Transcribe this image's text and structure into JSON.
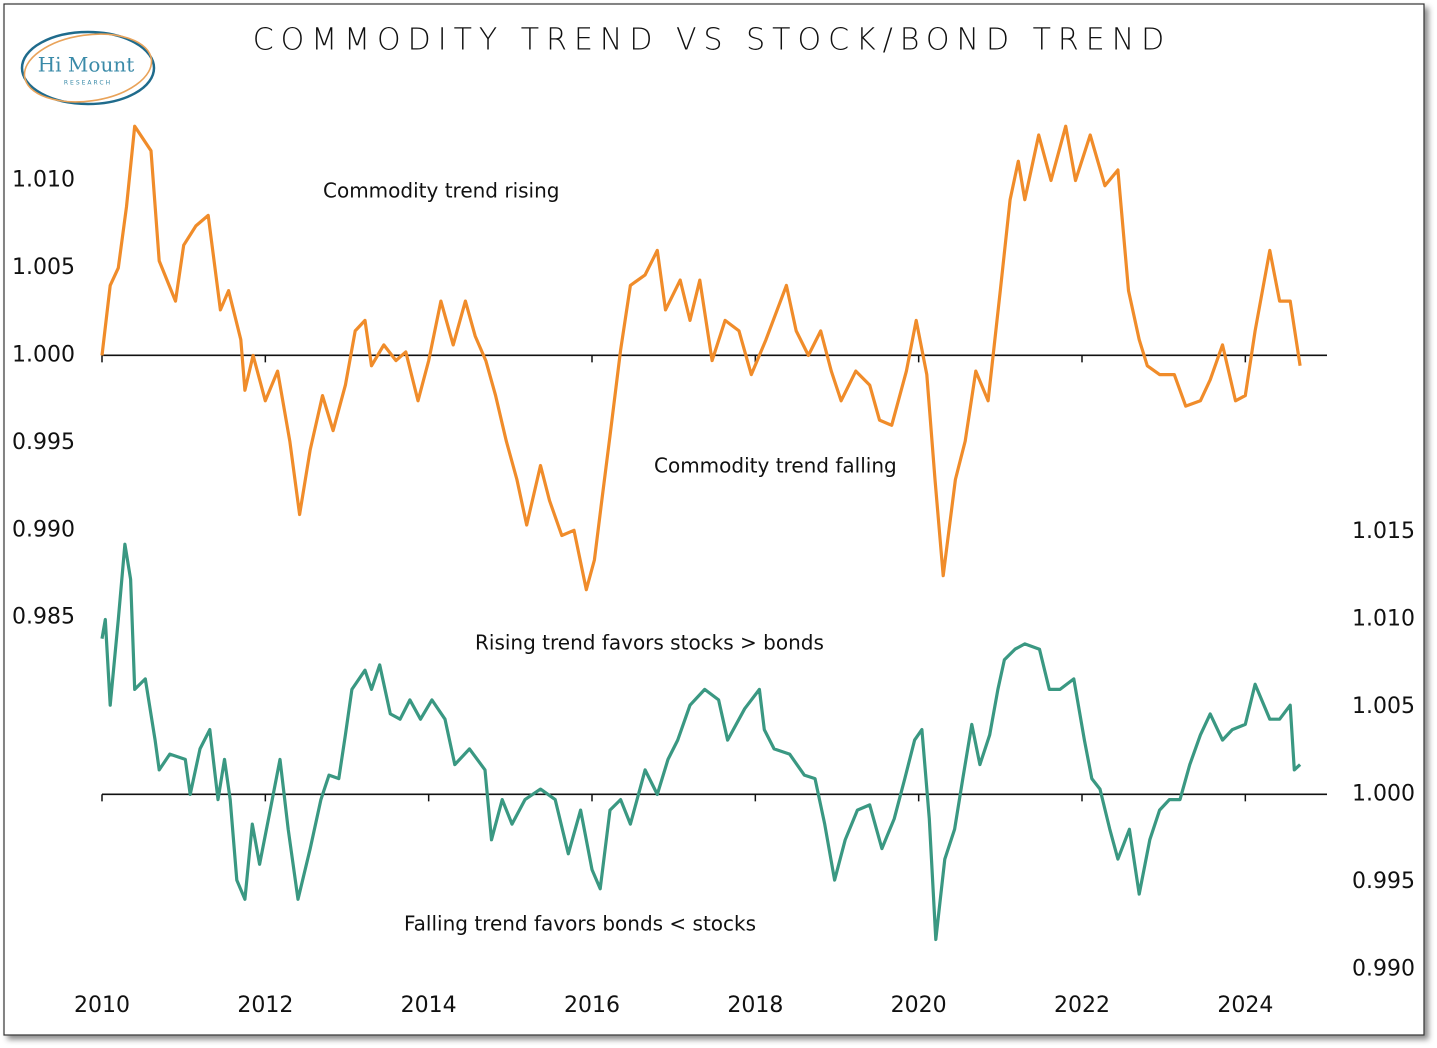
{
  "chart_data": {
    "type": "line",
    "title": "COMMODITY TREND VS STOCK/BOND TREND",
    "logo": {
      "name": "Hi Mount",
      "subtitle": "RESEARCH"
    },
    "annotations": [
      "Commodity trend rising",
      "Commodity trend falling",
      "Rising trend favors stocks > bonds",
      "Falling trend favors bonds < stocks"
    ],
    "xlim": [
      2010,
      2025
    ],
    "xticks": [
      2010,
      2012,
      2014,
      2016,
      2018,
      2020,
      2022,
      2024
    ],
    "ylim": [
      0.964,
      1.0146
    ],
    "yticks": [
      0.985,
      {
        "value": 0.99,
        "label": "0.990"
      },
      0.995,
      {
        "value": 1,
        "label": "1.000"
      },
      1.005,
      {
        "value": 1.01,
        "label": "1.010"
      }
    ],
    "y2lim": [
      0.9891,
      1.0397
    ],
    "y2ticks": [
      {
        "value": 0.99,
        "label": "0.990"
      },
      0.995,
      {
        "value": 1,
        "label": "1.000"
      },
      1.005,
      {
        "value": 1.01,
        "label": "1.010"
      },
      1.015
    ],
    "hlines": [
      {
        "axis": "y",
        "value": 1
      },
      {
        "axis": "y2",
        "value": 1
      }
    ],
    "grid": false,
    "series": [
      {
        "color": "#f08c2a",
        "axis": "y",
        "x": [
          2010.0,
          2010.1,
          2010.2,
          2010.3,
          2010.4,
          2010.6,
          2010.7,
          2010.9,
          2011.0,
          2011.15,
          2011.3,
          2011.45,
          2011.55,
          2011.7,
          2011.75,
          2011.85,
          2012.0,
          2012.15,
          2012.3,
          2012.42,
          2012.55,
          2012.7,
          2012.83,
          2012.98,
          2013.1,
          2013.22,
          2013.3,
          2013.45,
          2013.6,
          2013.72,
          2013.87,
          2014.0,
          2014.15,
          2014.3,
          2014.45,
          2014.57,
          2014.7,
          2014.82,
          2014.95,
          2015.08,
          2015.2,
          2015.37,
          2015.48,
          2015.63,
          2015.78,
          2015.93,
          2016.03,
          2016.12,
          2016.22,
          2016.35,
          2016.47,
          2016.65,
          2016.8,
          2016.9,
          2017.08,
          2017.2,
          2017.32,
          2017.47,
          2017.63,
          2017.8,
          2017.95,
          2018.13,
          2018.38,
          2018.5,
          2018.65,
          2018.8,
          2018.93,
          2019.05,
          2019.23,
          2019.4,
          2019.52,
          2019.67,
          2019.85,
          2019.97,
          2020.1,
          2020.2,
          2020.3,
          2020.45,
          2020.57,
          2020.7,
          2020.85,
          2021.0,
          2021.12,
          2021.22,
          2021.3,
          2021.47,
          2021.62,
          2021.8,
          2021.92,
          2022.1,
          2022.28,
          2022.44,
          2022.57,
          2022.7,
          2022.8,
          2022.95,
          2023.13,
          2023.27,
          2023.45,
          2023.57,
          2023.72,
          2023.88,
          2024.0,
          2024.12,
          2024.3,
          2024.42,
          2024.55,
          2024.67
        ],
        "values": [
          1.0,
          1.004,
          1.005,
          1.0085,
          1.0131,
          1.0117,
          1.0054,
          1.0031,
          1.0063,
          1.0074,
          1.008,
          1.0026,
          1.0037,
          1.0009,
          0.998,
          1.0,
          0.9974,
          0.9991,
          0.9951,
          0.9909,
          0.9946,
          0.9977,
          0.9957,
          0.9983,
          1.0014,
          1.002,
          0.9994,
          1.0006,
          0.9997,
          1.0002,
          0.9974,
          0.9997,
          1.0031,
          1.0006,
          1.0031,
          1.0011,
          0.9997,
          0.9977,
          0.9951,
          0.9929,
          0.9903,
          0.9937,
          0.9917,
          0.9897,
          0.99,
          0.9866,
          0.9883,
          0.9917,
          0.9954,
          1.0003,
          1.004,
          1.0046,
          1.006,
          1.0026,
          1.0043,
          1.002,
          1.0043,
          0.9997,
          1.002,
          1.0014,
          0.9989,
          1.0009,
          1.004,
          1.0014,
          1.0,
          1.0014,
          0.9991,
          0.9974,
          0.9991,
          0.9983,
          0.9963,
          0.996,
          0.9991,
          1.002,
          0.9989,
          0.9929,
          0.9874,
          0.9929,
          0.9951,
          0.9991,
          0.9974,
          1.0037,
          1.0089,
          1.0111,
          1.0089,
          1.0126,
          1.01,
          1.0131,
          1.01,
          1.0126,
          1.0097,
          1.0106,
          1.0037,
          1.0009,
          0.9994,
          0.9989,
          0.9989,
          0.9971,
          0.9974,
          0.9986,
          1.0006,
          0.9974,
          0.9977,
          1.0014,
          1.006,
          1.0031,
          1.0031,
          0.9994
        ]
      },
      {
        "color": "#3a9882",
        "axis": "y2",
        "x": [
          2010.0,
          2010.04,
          2010.1,
          2010.2,
          2010.28,
          2010.35,
          2010.4,
          2010.53,
          2010.65,
          2010.7,
          2010.83,
          2011.02,
          2011.08,
          2011.2,
          2011.32,
          2011.42,
          2011.5,
          2011.57,
          2011.65,
          2011.75,
          2011.84,
          2011.93,
          2012.06,
          2012.18,
          2012.28,
          2012.4,
          2012.55,
          2012.68,
          2012.78,
          2012.9,
          2012.98,
          2013.06,
          2013.22,
          2013.3,
          2013.4,
          2013.53,
          2013.65,
          2013.77,
          2013.9,
          2014.04,
          2014.2,
          2014.32,
          2014.5,
          2014.69,
          2014.77,
          2014.9,
          2015.02,
          2015.18,
          2015.37,
          2015.55,
          2015.71,
          2015.86,
          2016.0,
          2016.1,
          2016.22,
          2016.35,
          2016.47,
          2016.65,
          2016.8,
          2016.93,
          2017.05,
          2017.2,
          2017.38,
          2017.55,
          2017.66,
          2017.87,
          2018.05,
          2018.11,
          2018.23,
          2018.42,
          2018.6,
          2018.73,
          2018.85,
          2018.97,
          2019.1,
          2019.25,
          2019.4,
          2019.55,
          2019.7,
          2019.83,
          2019.95,
          2020.04,
          2020.13,
          2020.21,
          2020.32,
          2020.44,
          2020.54,
          2020.65,
          2020.75,
          2020.87,
          2020.97,
          2021.05,
          2021.18,
          2021.3,
          2021.48,
          2021.6,
          2021.73,
          2021.9,
          2022.03,
          2022.12,
          2022.22,
          2022.34,
          2022.44,
          2022.58,
          2022.7,
          2022.83,
          2022.95,
          2023.07,
          2023.2,
          2023.32,
          2023.45,
          2023.57,
          2023.72,
          2023.84,
          2024.0,
          2024.12,
          2024.3,
          2024.42,
          2024.55,
          2024.6,
          2024.67
        ],
        "values": [
          1.0089,
          1.01,
          1.0051,
          1.01,
          1.0143,
          1.0123,
          1.006,
          1.0066,
          1.0031,
          1.0014,
          1.0023,
          1.002,
          1.0,
          1.0026,
          1.0037,
          0.9997,
          1.002,
          0.9997,
          0.9951,
          0.994,
          0.9983,
          0.996,
          0.9991,
          1.002,
          0.998,
          0.994,
          0.9969,
          0.9997,
          1.0011,
          1.0009,
          1.0034,
          1.006,
          1.0071,
          1.006,
          1.0074,
          1.0046,
          1.0043,
          1.0054,
          1.0043,
          1.0054,
          1.0043,
          1.0017,
          1.0026,
          1.0014,
          0.9974,
          0.9997,
          0.9983,
          0.9997,
          1.0003,
          0.9997,
          0.9966,
          0.9991,
          0.9957,
          0.9946,
          0.9991,
          0.9997,
          0.9983,
          1.0014,
          1.0,
          1.002,
          1.0031,
          1.0051,
          1.006,
          1.0054,
          1.0031,
          1.0049,
          1.006,
          1.0037,
          1.0026,
          1.0023,
          1.0011,
          1.0009,
          0.9983,
          0.9951,
          0.9974,
          0.9991,
          0.9994,
          0.9969,
          0.9986,
          1.0009,
          1.0031,
          1.0037,
          0.9986,
          0.9917,
          0.9963,
          0.998,
          1.0009,
          1.004,
          1.0017,
          1.0034,
          1.006,
          1.0077,
          1.0083,
          1.0086,
          1.0083,
          1.006,
          1.006,
          1.0066,
          1.0031,
          1.0009,
          1.0003,
          0.998,
          0.9963,
          0.998,
          0.9943,
          0.9974,
          0.9991,
          0.9997,
          0.9997,
          1.0017,
          1.0034,
          1.0046,
          1.0031,
          1.0037,
          1.004,
          1.0063,
          1.0043,
          1.0043,
          1.0051,
          1.0014,
          1.0017
        ]
      }
    ]
  }
}
